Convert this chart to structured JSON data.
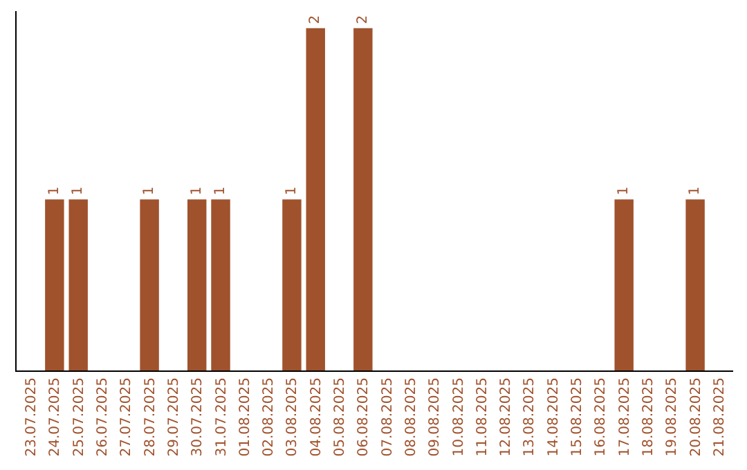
{
  "chart_data": {
    "type": "bar",
    "categories": [
      "23.07.2025",
      "24.07.2025",
      "25.07.2025",
      "26.07.2025",
      "27.07.2025",
      "28.07.2025",
      "29.07.2025",
      "30.07.2025",
      "31.07.2025",
      "01.08.2025",
      "02.08.2025",
      "03.08.2025",
      "04.08.2025",
      "05.08.2025",
      "06.08.2025",
      "07.08.2025",
      "08.08.2025",
      "09.08.2025",
      "10.08.2025",
      "11.08.2025",
      "12.08.2025",
      "13.08.2025",
      "14.08.2025",
      "15.08.2025",
      "16.08.2025",
      "17.08.2025",
      "18.08.2025",
      "19.08.2025",
      "20.08.2025",
      "21.08.2025"
    ],
    "values": [
      0,
      1,
      1,
      0,
      0,
      1,
      0,
      1,
      1,
      0,
      0,
      1,
      2,
      0,
      2,
      0,
      0,
      0,
      0,
      0,
      0,
      0,
      0,
      0,
      0,
      1,
      0,
      0,
      1,
      0
    ],
    "value_labels": [
      null,
      "1",
      "1",
      null,
      null,
      "1",
      null,
      "1",
      "1",
      null,
      null,
      "1",
      "2",
      null,
      "2",
      null,
      null,
      null,
      null,
      null,
      null,
      null,
      null,
      null,
      null,
      "1",
      null,
      null,
      "1",
      null
    ],
    "color": "#a0522d",
    "ylim": [
      0,
      2.1
    ],
    "tick_labels": "x",
    "legend": false
  }
}
